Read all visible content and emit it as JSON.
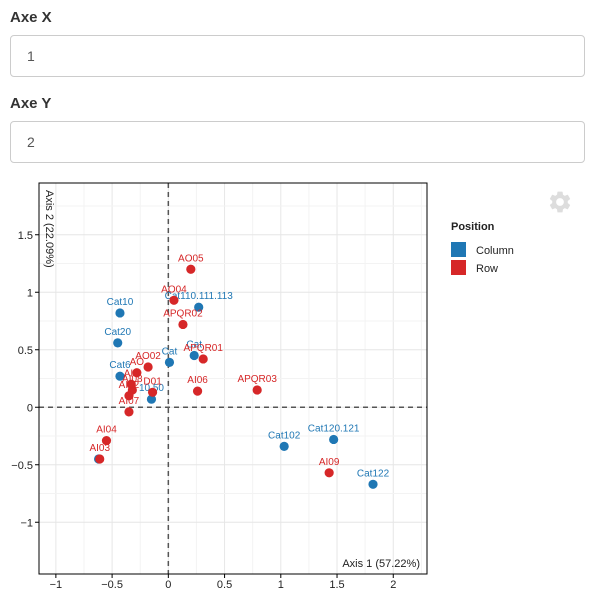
{
  "controls": {
    "axis_x": {
      "label": "Axe X",
      "value": "1"
    },
    "axis_y": {
      "label": "Axe Y",
      "value": "2"
    }
  },
  "icons": {
    "settings": "gear-icon"
  },
  "colors": {
    "column": "#1f77b4",
    "row": "#d62728"
  },
  "chart_data": {
    "type": "scatter",
    "title": "",
    "xlabel": "Axis 1 (57.22%)",
    "ylabel": "Axis 2 (22.09%)",
    "xlim": [
      -1.15,
      2.3
    ],
    "ylim": [
      -1.45,
      1.95
    ],
    "xticks": [
      -1,
      -0.5,
      0,
      0.5,
      1,
      1.5,
      2
    ],
    "xtick_labels": [
      "−1",
      "−0.5",
      "0",
      "0.5",
      "1",
      "1.5",
      "2"
    ],
    "yticks": [
      -1,
      -0.5,
      0,
      0.5,
      1,
      1.5
    ],
    "ytick_labels": [
      "−1",
      "−0.5",
      "0",
      "0.5",
      "1",
      "1.5"
    ],
    "grid": true,
    "legend": {
      "title": "Position",
      "placement": "right"
    },
    "series": [
      {
        "name": "Column",
        "points": [
          {
            "label": "Cat10",
            "x": -0.43,
            "y": 0.82
          },
          {
            "label": "Cat20",
            "x": -0.45,
            "y": 0.56
          },
          {
            "label": "Cat110.111.113",
            "x": 0.27,
            "y": 0.87
          },
          {
            "label": "Cat",
            "x": 0.01,
            "y": 0.39
          },
          {
            "label": "Cat",
            "x": 0.23,
            "y": 0.45
          },
          {
            "label": "Cat6",
            "x": -0.43,
            "y": 0.27
          },
          {
            "label": "10.50",
            "x": -0.15,
            "y": 0.07
          },
          {
            "label": "Cat102",
            "x": 1.03,
            "y": -0.34
          },
          {
            "label": "Cat120.121",
            "x": 1.47,
            "y": -0.28
          },
          {
            "label": "Cat122",
            "x": 1.82,
            "y": -0.67
          },
          {
            "label": "",
            "x": -0.62,
            "y": -0.45
          }
        ]
      },
      {
        "name": "Row",
        "points": [
          {
            "label": "AO05",
            "x": 0.2,
            "y": 1.2
          },
          {
            "label": "AO04",
            "x": 0.05,
            "y": 0.93
          },
          {
            "label": "APQR02",
            "x": 0.13,
            "y": 0.72
          },
          {
            "label": "AO02",
            "x": -0.18,
            "y": 0.35
          },
          {
            "label": "APQR01",
            "x": 0.31,
            "y": 0.42
          },
          {
            "label": "AO",
            "x": -0.28,
            "y": 0.3
          },
          {
            "label": "AI08",
            "x": -0.32,
            "y": 0.15
          },
          {
            "label": "AI06",
            "x": 0.26,
            "y": 0.14
          },
          {
            "label": "APQR03",
            "x": 0.79,
            "y": 0.15
          },
          {
            "label": "AI07",
            "x": -0.35,
            "y": -0.04
          },
          {
            "label": "AI04",
            "x": -0.55,
            "y": -0.29
          },
          {
            "label": "AI03",
            "x": -0.61,
            "y": -0.45
          },
          {
            "label": "AI09",
            "x": 1.43,
            "y": -0.57
          },
          {
            "label": "AI0",
            "x": -0.33,
            "y": 0.2
          },
          {
            "label": "AI02",
            "x": -0.35,
            "y": 0.1
          },
          {
            "label": "D01",
            "x": -0.14,
            "y": 0.13
          }
        ]
      }
    ]
  }
}
